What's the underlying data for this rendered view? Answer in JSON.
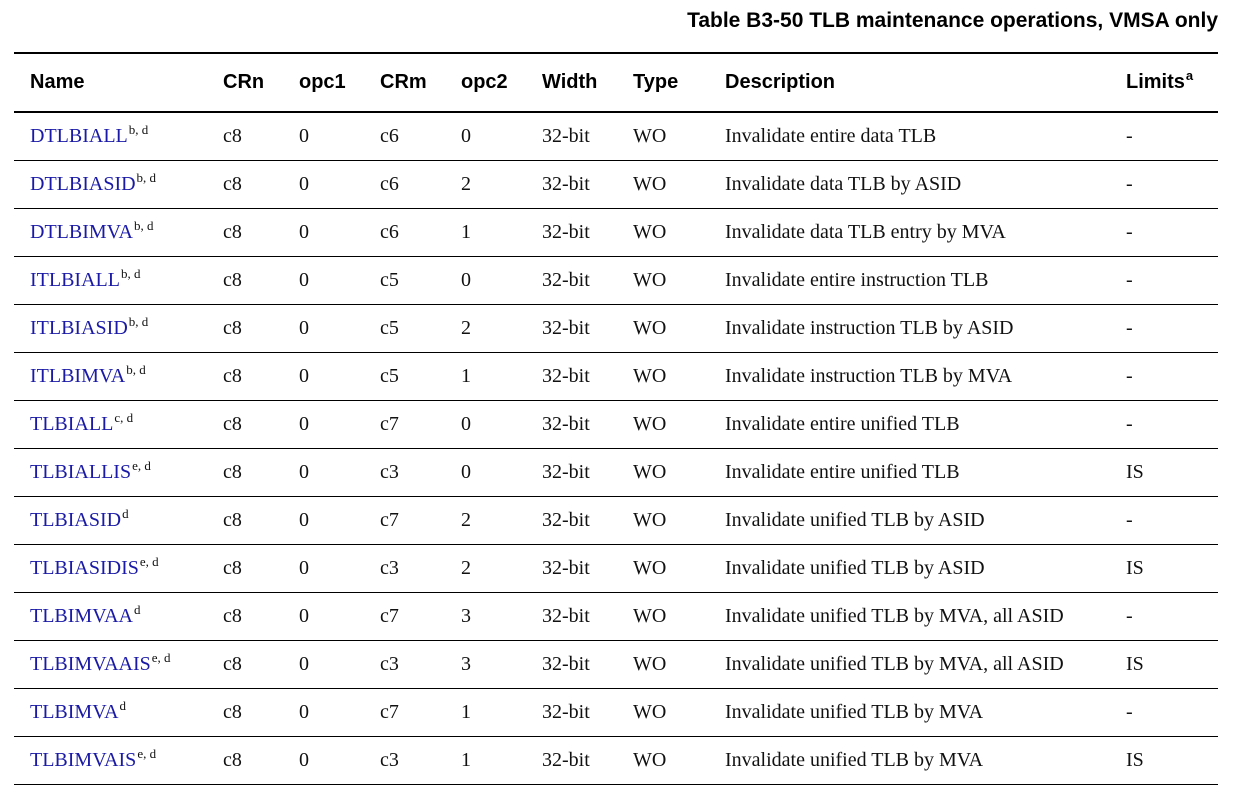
{
  "caption": "Table B3-50 TLB maintenance operations, VMSA only",
  "headers": {
    "name": "Name",
    "crn": "CRn",
    "opc1": "opc1",
    "crm": "CRm",
    "opc2": "opc2",
    "width": "Width",
    "type": "Type",
    "description": "Description",
    "limits": "Limits",
    "limits_note": "a"
  },
  "rows": [
    {
      "name": "DTLBIALL",
      "notes": "b, d",
      "crn": "c8",
      "opc1": "0",
      "crm": "c6",
      "opc2": "0",
      "width": "32-bit",
      "type": "WO",
      "description": "Invalidate entire data TLB",
      "limits": "-"
    },
    {
      "name": "DTLBIASID",
      "notes": "b, d",
      "crn": "c8",
      "opc1": "0",
      "crm": "c6",
      "opc2": "2",
      "width": "32-bit",
      "type": "WO",
      "description": "Invalidate data TLB by ASID",
      "limits": "-"
    },
    {
      "name": "DTLBIMVA",
      "notes": "b, d",
      "crn": "c8",
      "opc1": "0",
      "crm": "c6",
      "opc2": "1",
      "width": "32-bit",
      "type": "WO",
      "description": "Invalidate data TLB entry by MVA",
      "limits": "-"
    },
    {
      "name": "ITLBIALL",
      "notes": "b, d",
      "crn": "c8",
      "opc1": "0",
      "crm": "c5",
      "opc2": "0",
      "width": "32-bit",
      "type": "WO",
      "description": "Invalidate entire instruction TLB",
      "limits": "-"
    },
    {
      "name": "ITLBIASID",
      "notes": "b, d",
      "crn": "c8",
      "opc1": "0",
      "crm": "c5",
      "opc2": "2",
      "width": "32-bit",
      "type": "WO",
      "description": "Invalidate instruction TLB by ASID",
      "limits": "-"
    },
    {
      "name": "ITLBIMVA",
      "notes": "b, d",
      "crn": "c8",
      "opc1": "0",
      "crm": "c5",
      "opc2": "1",
      "width": "32-bit",
      "type": "WO",
      "description": "Invalidate instruction TLB by MVA",
      "limits": "-"
    },
    {
      "name": "TLBIALL",
      "notes": "c, d",
      "crn": "c8",
      "opc1": "0",
      "crm": "c7",
      "opc2": "0",
      "width": "32-bit",
      "type": "WO",
      "description": "Invalidate entire unified TLB",
      "limits": "-"
    },
    {
      "name": "TLBIALLIS",
      "notes": "e, d",
      "crn": "c8",
      "opc1": "0",
      "crm": "c3",
      "opc2": "0",
      "width": "32-bit",
      "type": "WO",
      "description": "Invalidate entire unified TLB",
      "limits": "IS"
    },
    {
      "name": "TLBIASID",
      "notes": "d",
      "crn": "c8",
      "opc1": "0",
      "crm": "c7",
      "opc2": "2",
      "width": "32-bit",
      "type": "WO",
      "description": "Invalidate unified TLB by ASID",
      "limits": "-"
    },
    {
      "name": "TLBIASIDIS",
      "notes": "e, d",
      "crn": "c8",
      "opc1": "0",
      "crm": "c3",
      "opc2": "2",
      "width": "32-bit",
      "type": "WO",
      "description": "Invalidate unified TLB by ASID",
      "limits": "IS"
    },
    {
      "name": "TLBIMVAA",
      "notes": "d",
      "crn": "c8",
      "opc1": "0",
      "crm": "c7",
      "opc2": "3",
      "width": "32-bit",
      "type": "WO",
      "description": "Invalidate unified TLB by MVA, all ASID",
      "limits": "-"
    },
    {
      "name": "TLBIMVAAIS",
      "notes": "e, d",
      "crn": "c8",
      "opc1": "0",
      "crm": "c3",
      "opc2": "3",
      "width": "32-bit",
      "type": "WO",
      "description": "Invalidate unified TLB by MVA, all ASID",
      "limits": "IS"
    },
    {
      "name": "TLBIMVA",
      "notes": "d",
      "crn": "c8",
      "opc1": "0",
      "crm": "c7",
      "opc2": "1",
      "width": "32-bit",
      "type": "WO",
      "description": "Invalidate unified TLB by MVA",
      "limits": "-"
    },
    {
      "name": "TLBIMVAIS",
      "notes": "e, d",
      "crn": "c8",
      "opc1": "0",
      "crm": "c3",
      "opc2": "1",
      "width": "32-bit",
      "type": "WO",
      "description": "Invalidate unified TLB by MVA",
      "limits": "IS"
    }
  ]
}
